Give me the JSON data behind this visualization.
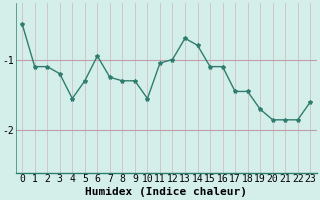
{
  "x": [
    0,
    1,
    2,
    3,
    4,
    5,
    6,
    7,
    8,
    9,
    10,
    11,
    12,
    13,
    14,
    15,
    16,
    17,
    18,
    19,
    20,
    21,
    22,
    23
  ],
  "y": [
    -0.5,
    -1.1,
    -1.1,
    -1.2,
    -1.55,
    -1.3,
    -0.95,
    -1.25,
    -1.3,
    -1.3,
    -1.55,
    -1.05,
    -1.0,
    -0.7,
    -0.8,
    -1.1,
    -1.1,
    -1.45,
    -1.45,
    -1.7,
    -1.85,
    -1.85,
    -1.85,
    -1.6
  ],
  "line_color": "#2e7d6e",
  "marker": "*",
  "marker_size": 3,
  "bg_color": "#d4eeea",
  "grid_color_major": "#b0d8d0",
  "grid_color_minor": "#c8e8e4",
  "xlabel": "Humidex (Indice chaleur)",
  "yticks": [
    -2,
    -1
  ],
  "ylim": [
    -2.6,
    -0.2
  ],
  "xlim": [
    -0.5,
    23.5
  ],
  "xlabel_fontsize": 8,
  "tick_fontsize": 7,
  "linewidth": 1.0
}
